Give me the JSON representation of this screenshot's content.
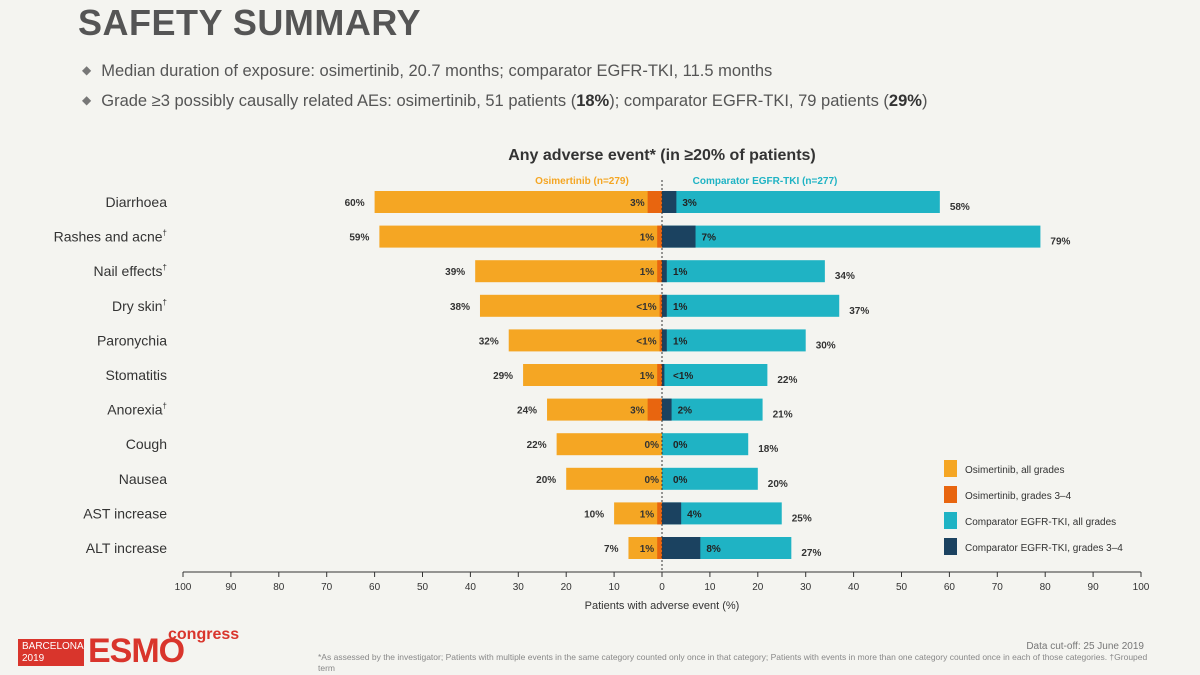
{
  "slide": {
    "title": "SAFETY SUMMARY",
    "bullets": [
      {
        "text": "Median duration of exposure: osimertinib, 20.7 months; comparator EGFR-TKI, 11.5 months"
      },
      {
        "pre": "Grade ≥3 possibly causally related AEs: osimertinib, 51 patients (",
        "b1": "18%",
        "mid": "); comparator EGFR-TKI, 79 patients (",
        "b2": "29%",
        "post": ")"
      }
    ],
    "footer": {
      "logo_city": "BARCELONA",
      "logo_year": "2019",
      "logo_esmo": "ESMO",
      "logo_congress": "congress",
      "cutoff": "Data cut-off: 25 June 2019",
      "footnote": "*As assessed by the investigator; Patients with multiple events in the same category counted only once in that category; Patients with events in more than one category counted once in each of those categories. †Grouped term"
    }
  },
  "chart_data": {
    "type": "bar",
    "title": "Any adverse event* (in ≥20% of patients)",
    "left_header": "Osimertinib (n=279)",
    "right_header": "Comparator EGFR-TKI (n=277)",
    "xlabel": "Patients with adverse event (%)",
    "xlim": [
      -100,
      100
    ],
    "xticks": [
      "100",
      "90",
      "80",
      "70",
      "60",
      "50",
      "40",
      "30",
      "20",
      "10",
      "0",
      "10",
      "20",
      "30",
      "40",
      "50",
      "60",
      "70",
      "80",
      "90",
      "100"
    ],
    "categories": [
      "Diarrhoea",
      "Rashes and acne",
      "Nail effects",
      "Dry skin",
      "Paronychia",
      "Stomatitis",
      "Anorexia",
      "Cough",
      "Nausea",
      "AST increase",
      "ALT increase"
    ],
    "dagger": [
      false,
      true,
      true,
      true,
      false,
      false,
      true,
      false,
      false,
      false,
      false
    ],
    "series": [
      {
        "name": "Osimertinib, all grades",
        "color": "#f5a623",
        "side": "left",
        "values": [
          60,
          59,
          39,
          38,
          32,
          29,
          24,
          22,
          20,
          10,
          7
        ],
        "labels": [
          "60%",
          "59%",
          "39%",
          "38%",
          "32%",
          "29%",
          "24%",
          "22%",
          "20%",
          "10%",
          "7%"
        ]
      },
      {
        "name": "Osimertinib, grades 3–4",
        "color": "#e8650f",
        "side": "left",
        "values": [
          3,
          1,
          1,
          0.5,
          0.5,
          1,
          3,
          0,
          0,
          1,
          1
        ],
        "labels": [
          "3%",
          "1%",
          "1%",
          "<1%",
          "<1%",
          "1%",
          "3%",
          "0%",
          "0%",
          "1%",
          "1%"
        ]
      },
      {
        "name": "Comparator EGFR-TKI, all grades",
        "color": "#1fb3c4",
        "side": "right",
        "values": [
          58,
          79,
          34,
          37,
          30,
          22,
          21,
          18,
          20,
          25,
          27
        ],
        "labels": [
          "58%",
          "79%",
          "34%",
          "37%",
          "30%",
          "22%",
          "21%",
          "18%",
          "20%",
          "25%",
          "27%"
        ]
      },
      {
        "name": "Comparator EGFR-TKI, grades 3–4",
        "color": "#1b4260",
        "side": "right",
        "values": [
          3,
          7,
          1,
          1,
          1,
          0.5,
          2,
          0,
          0,
          4,
          8
        ],
        "labels": [
          "3%",
          "7%",
          "1%",
          "1%",
          "1%",
          "<1%",
          "2%",
          "0%",
          "0%",
          "4%",
          "8%"
        ]
      }
    ],
    "legend_position": "bottom-right"
  }
}
